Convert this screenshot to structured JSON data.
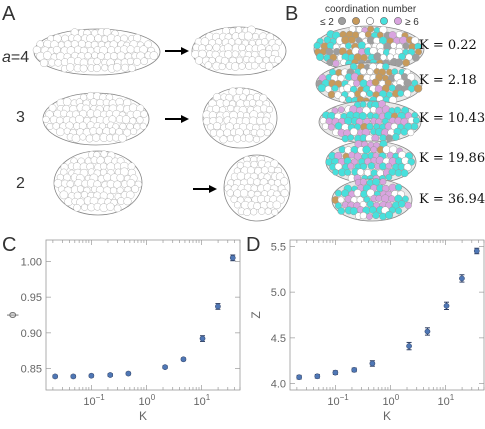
{
  "panels": {
    "A": {
      "label": "A",
      "rows": [
        {
          "label_prefix": "a",
          "label_rest": "=4"
        },
        {
          "label_prefix": "",
          "label_rest": "3"
        },
        {
          "label_prefix": "",
          "label_rest": "2"
        }
      ]
    },
    "B": {
      "label": "B",
      "legend_title": "coordination number",
      "legend_items": [
        {
          "label": "≤ 2",
          "color": "#9e9e9e"
        },
        {
          "label": "",
          "color": "#c79a5b"
        },
        {
          "label": "",
          "color": "#ffffff"
        },
        {
          "label": "",
          "color": "#47e0dc"
        },
        {
          "label": "≥ 6",
          "color": "#d9a4df"
        }
      ],
      "k_labels": [
        "K = 0.22",
        "K = 2.18",
        "K = 10.43",
        "K = 19.86",
        "K = 36.94"
      ]
    },
    "C": {
      "label": "C"
    },
    "D": {
      "label": "D"
    }
  },
  "chart_data": [
    {
      "type": "scatter",
      "panel": "C",
      "xlabel": "K",
      "ylabel": "ϕ",
      "xscale": "log",
      "xlim": [
        0.015,
        50
      ],
      "ylim": [
        0.82,
        1.03
      ],
      "xticks": [
        {
          "v": 0.1,
          "label": "10",
          "sup": "−1"
        },
        {
          "v": 1,
          "label": "10",
          "sup": "0"
        },
        {
          "v": 10,
          "label": "10",
          "sup": "1"
        }
      ],
      "yticks": [
        0.85,
        0.9,
        0.95,
        1.0
      ],
      "ytick_labels": [
        "0.85",
        "0.90",
        "0.95",
        "1.00"
      ],
      "color": "#4f77b5",
      "x": [
        0.022,
        0.047,
        0.1,
        0.22,
        0.47,
        2.18,
        4.7,
        10.43,
        19.86,
        36.94
      ],
      "y": [
        0.839,
        0.839,
        0.84,
        0.841,
        0.843,
        0.852,
        0.863,
        0.892,
        0.937,
        1.005
      ],
      "err": [
        0.002,
        0.002,
        0.002,
        0.002,
        0.002,
        0.002,
        0.002,
        0.004,
        0.004,
        0.004
      ]
    },
    {
      "type": "scatter",
      "panel": "D",
      "xlabel": "K",
      "ylabel": "Z",
      "xscale": "log",
      "xlim": [
        0.015,
        50
      ],
      "ylim": [
        3.93,
        5.57
      ],
      "xticks": [
        {
          "v": 0.1,
          "label": "10",
          "sup": "−1"
        },
        {
          "v": 1,
          "label": "10",
          "sup": "0"
        },
        {
          "v": 10,
          "label": "10",
          "sup": "1"
        }
      ],
      "yticks": [
        4.0,
        4.5,
        5.0,
        5.5
      ],
      "ytick_labels": [
        "4.0",
        "4.5",
        "5.0",
        "5.5"
      ],
      "color": "#4f77b5",
      "x": [
        0.022,
        0.047,
        0.1,
        0.22,
        0.47,
        2.18,
        4.7,
        10.43,
        19.86,
        36.94
      ],
      "y": [
        4.07,
        4.08,
        4.12,
        4.15,
        4.22,
        4.41,
        4.57,
        4.85,
        5.15,
        5.45
      ],
      "err": [
        0.02,
        0.02,
        0.02,
        0.02,
        0.03,
        0.04,
        0.04,
        0.04,
        0.04,
        0.03
      ]
    }
  ]
}
